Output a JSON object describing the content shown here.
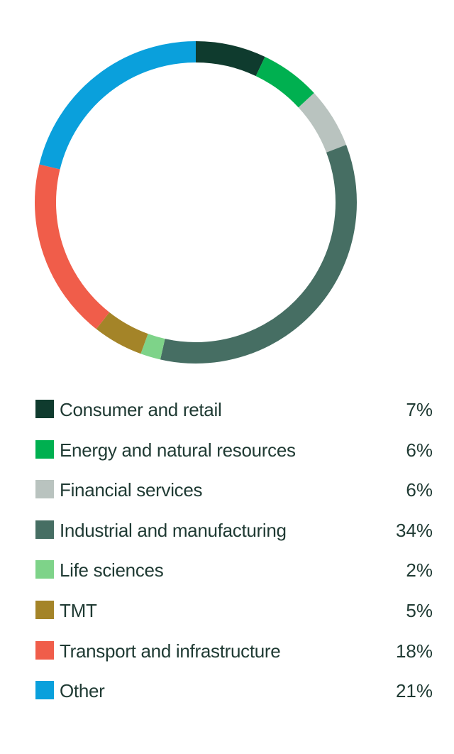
{
  "chart_data": {
    "type": "pie",
    "style": "donut",
    "start_angle_deg": 0,
    "direction": "clockwise",
    "slices": [
      {
        "label": "Consumer and retail",
        "value": 7,
        "display": "7%",
        "color": "#0f3b2e"
      },
      {
        "label": "Energy and natural resources",
        "value": 6,
        "display": "6%",
        "color": "#00b050"
      },
      {
        "label": "Financial services",
        "value": 6,
        "display": "6%",
        "color": "#b9c3bf"
      },
      {
        "label": "Industrial and manufacturing",
        "value": 34,
        "display": "34%",
        "color": "#466e63"
      },
      {
        "label": "Life sciences",
        "value": 2,
        "display": "2%",
        "color": "#7ed389"
      },
      {
        "label": "TMT",
        "value": 5,
        "display": "5%",
        "color": "#a48428"
      },
      {
        "label": "Transport and infrastructure",
        "value": 18,
        "display": "18%",
        "color": "#f05d4a"
      },
      {
        "label": "Other",
        "value": 21,
        "display": "21%",
        "color": "#0aa0dc"
      }
    ]
  }
}
